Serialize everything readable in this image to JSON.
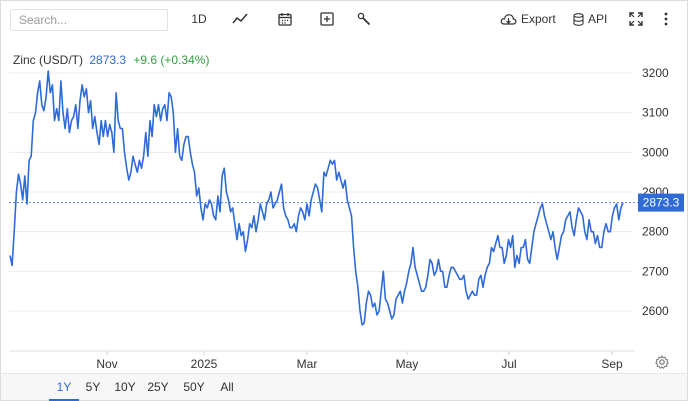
{
  "search": {
    "placeholder": "Search..."
  },
  "toolbar": {
    "interval_label": "1D",
    "export_label": "Export",
    "api_label": "API",
    "icons": [
      "line-chart-icon",
      "calendar-icon",
      "plus-square-icon",
      "wrench-icon",
      "cloud-download-icon",
      "database-icon",
      "fullscreen-icon",
      "more-icon"
    ]
  },
  "legend": {
    "name": "Zinc (USD/T)",
    "price": "2873.3",
    "change": "+9.6 (+0.34%)"
  },
  "colors": {
    "line": "#2e6bd6",
    "up": "#2ea043",
    "grid": "#ececec",
    "label_bg": "#2e6bd6"
  },
  "ranges": [
    {
      "label": "1Y",
      "active": true
    },
    {
      "label": "5Y",
      "active": false
    },
    {
      "label": "10Y",
      "active": false
    },
    {
      "label": "25Y",
      "active": false
    },
    {
      "label": "50Y",
      "active": false
    },
    {
      "label": "All",
      "active": false
    }
  ],
  "chart_data": {
    "type": "line",
    "title": "Zinc (USD/T)",
    "xlabel": "",
    "ylabel": "",
    "y_ticks": [
      2600,
      2700,
      2800,
      2900,
      3000,
      3100,
      3200
    ],
    "ylim": [
      2530,
      3230
    ],
    "x_ticks": [
      "Nov",
      "2025",
      "Mar",
      "May",
      "Jul",
      "Sep"
    ],
    "last_value": 2873.3,
    "grid": true,
    "series": [
      {
        "name": "Zinc",
        "values": [
          2740,
          2715,
          2800,
          2900,
          2945,
          2920,
          2880,
          2940,
          2870,
          2980,
          2990,
          3080,
          3100,
          3150,
          3180,
          3120,
          3105,
          3140,
          3205,
          3150,
          3170,
          3080,
          3110,
          3080,
          3180,
          3100,
          3060,
          3110,
          3050,
          3080,
          3090,
          3120,
          3060,
          3130,
          3170,
          3140,
          3160,
          3100,
          3130,
          3060,
          3090,
          3050,
          3020,
          3080,
          3040,
          3080,
          3040,
          3070,
          3050,
          3000,
          3150,
          3080,
          3060,
          3060,
          3000,
          2960,
          2930,
          2950,
          2990,
          2970,
          2950,
          2980,
          2960,
          2990,
          3050,
          2990,
          3080,
          3040,
          3120,
          3090,
          3120,
          3080,
          3110,
          3120,
          3080,
          3150,
          3140,
          3100,
          3000,
          3060,
          2990,
          2980,
          3020,
          3040,
          3040,
          3000,
          2970,
          2950,
          2890,
          2910,
          2860,
          2830,
          2870,
          2860,
          2880,
          2870,
          2840,
          2830,
          2890,
          2850,
          2940,
          2960,
          2900,
          2880,
          2850,
          2860,
          2820,
          2780,
          2820,
          2790,
          2800,
          2750,
          2780,
          2820,
          2810,
          2840,
          2800,
          2830,
          2870,
          2850,
          2830,
          2870,
          2880,
          2900,
          2860,
          2870,
          2880,
          2900,
          2920,
          2860,
          2840,
          2830,
          2810,
          2810,
          2820,
          2800,
          2840,
          2860,
          2850,
          2830,
          2870,
          2840,
          2880,
          2900,
          2920,
          2910,
          2880,
          2850,
          2950,
          2940,
          2960,
          2980,
          2970,
          2980,
          2930,
          2950,
          2930,
          2910,
          2930,
          2880,
          2860,
          2840,
          2760,
          2700,
          2660,
          2600,
          2565,
          2570,
          2620,
          2650,
          2640,
          2610,
          2620,
          2590,
          2600,
          2650,
          2700,
          2630,
          2620,
          2600,
          2580,
          2590,
          2630,
          2640,
          2650,
          2620,
          2650,
          2670,
          2700,
          2720,
          2760,
          2710,
          2690,
          2670,
          2650,
          2650,
          2660,
          2690,
          2730,
          2720,
          2690,
          2700,
          2730,
          2700,
          2700,
          2660,
          2660,
          2690,
          2710,
          2710,
          2700,
          2690,
          2680,
          2680,
          2690,
          2650,
          2630,
          2640,
          2650,
          2640,
          2640,
          2680,
          2690,
          2660,
          2690,
          2710,
          2720,
          2760,
          2750,
          2770,
          2790,
          2760,
          2760,
          2720,
          2740,
          2780,
          2760,
          2790,
          2710,
          2740,
          2720,
          2760,
          2760,
          2780,
          2730,
          2720,
          2760,
          2800,
          2820,
          2840,
          2860,
          2870,
          2840,
          2820,
          2800,
          2780,
          2800,
          2760,
          2730,
          2760,
          2790,
          2800,
          2830,
          2840,
          2850,
          2810,
          2790,
          2830,
          2860,
          2850,
          2840,
          2800,
          2780,
          2830,
          2800,
          2800,
          2770,
          2790,
          2760,
          2760,
          2800,
          2820,
          2800,
          2800,
          2840,
          2860,
          2870,
          2830,
          2860,
          2873.3
        ]
      }
    ]
  }
}
